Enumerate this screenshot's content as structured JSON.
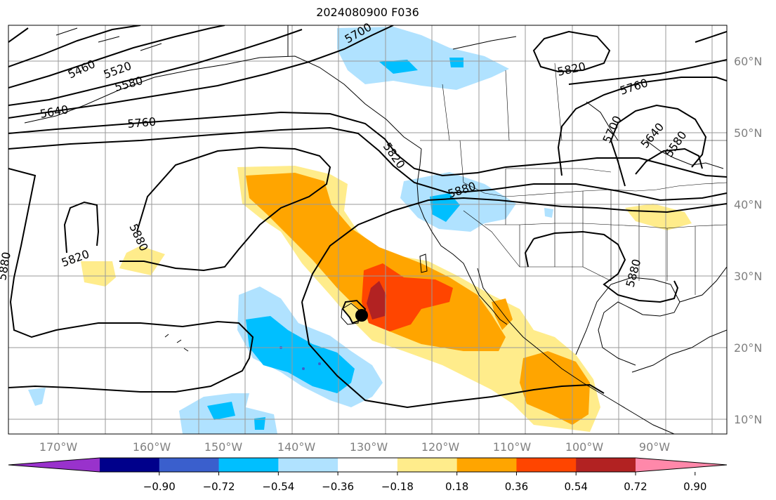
{
  "title": "2024080900 F036",
  "map": {
    "lat_labels": [
      "60°N",
      "50°N",
      "40°N",
      "30°N",
      "20°N",
      "10°N"
    ],
    "lon_labels": [
      "170°W",
      "160°W",
      "150°W",
      "140°W",
      "130°W",
      "120°W",
      "110°W",
      "100°W",
      "90°W"
    ],
    "contour_labels": [
      "5460",
      "5520",
      "5580",
      "5640",
      "5700",
      "5760",
      "5820",
      "5880",
      "5820",
      "5880",
      "5820",
      "5760",
      "5700",
      "5640",
      "5580",
      "5880",
      "5880",
      "5820"
    ],
    "gridlines": true
  },
  "colorbar": {
    "ticks": [
      "−0.90",
      "−0.72",
      "−0.54",
      "−0.36",
      "−0.18",
      "0.18",
      "0.36",
      "0.54",
      "0.72",
      "0.90"
    ],
    "colors": [
      "#9932cc",
      "#00008b",
      "#3a5fcd",
      "#00bfff",
      "#b0e2ff",
      "#ffffff",
      "#ffec8b",
      "#ffa500",
      "#ff4500",
      "#b22222",
      "#ff88aa"
    ]
  },
  "legend_colors": {
    "neg_light": "#b0e2ff",
    "neg_mid": "#00bfff",
    "neg_deep": "#3a5fcd",
    "pos_light": "#ffec8b",
    "pos_mid": "#ffa500",
    "pos_high": "#ff4500",
    "pos_max": "#b22222"
  }
}
